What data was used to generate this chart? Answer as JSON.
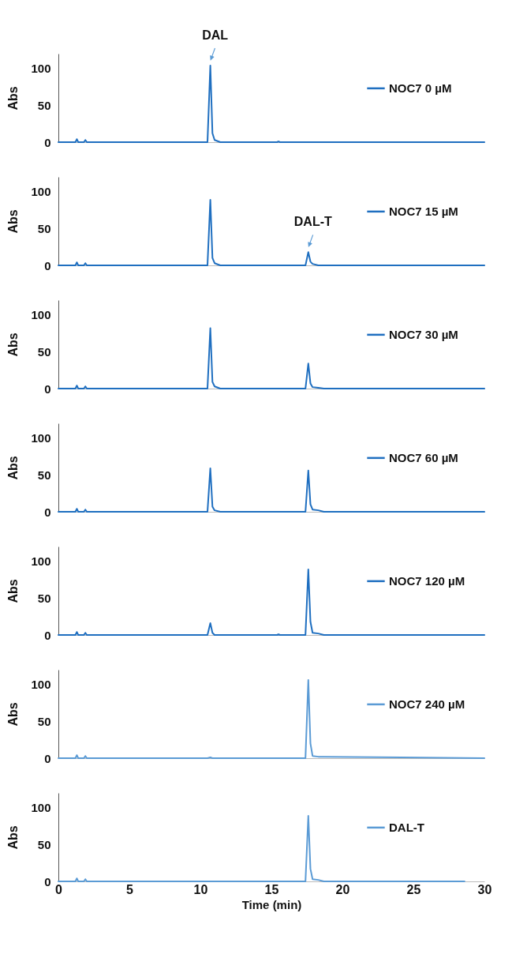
{
  "chart_data": [
    {
      "type": "line",
      "ylabel": "Abs",
      "xlim": [
        0,
        30
      ],
      "xticks": [
        0,
        5,
        10,
        15,
        20,
        25,
        30
      ],
      "ylim": [
        0,
        120
      ],
      "yticks": [
        0,
        50,
        100
      ],
      "tick_labels": "y",
      "legend": "right",
      "annotations": [
        {
          "text": "DAL",
          "x": 10.7,
          "y": 104
        }
      ],
      "x": [
        0,
        1.2,
        1.3,
        1.4,
        1.8,
        1.9,
        2.0,
        4,
        10.5,
        10.7,
        10.85,
        11.0,
        11.4,
        15.4,
        15.5,
        15.6,
        17.4,
        17.6,
        17.75,
        17.9,
        18.3,
        18.7,
        30
      ],
      "series": [
        {
          "name": "NOC7 0 µM",
          "color": "#1f6fc0",
          "values": [
            0,
            0,
            4,
            0,
            0,
            3,
            0,
            0,
            0,
            104,
            12,
            3,
            0,
            0,
            1,
            0,
            0,
            0,
            0,
            0,
            0,
            0,
            0
          ]
        }
      ]
    },
    {
      "type": "line",
      "ylabel": "Abs",
      "xlim": [
        0,
        30
      ],
      "xticks": [
        0,
        5,
        10,
        15,
        20,
        25,
        30
      ],
      "ylim": [
        0,
        120
      ],
      "yticks": [
        0,
        50,
        100
      ],
      "tick_labels": "y",
      "legend": "right",
      "annotations": [
        {
          "text": "DAL-T",
          "x": 17.6,
          "y": 18
        }
      ],
      "x": [
        0,
        1.2,
        1.3,
        1.4,
        1.8,
        1.9,
        2.0,
        4,
        10.5,
        10.7,
        10.85,
        11.0,
        11.4,
        15.4,
        15.5,
        15.6,
        17.4,
        17.6,
        17.75,
        17.9,
        18.3,
        18.7,
        30
      ],
      "series": [
        {
          "name": "NOC7 15 µM",
          "color": "#1f6fc0",
          "values": [
            0,
            0,
            4,
            0,
            0,
            3,
            0,
            0,
            0,
            89,
            10,
            3,
            0,
            0,
            0,
            0,
            0,
            18,
            5,
            2,
            0,
            0,
            0
          ]
        }
      ]
    },
    {
      "type": "line",
      "ylabel": "Abs",
      "xlim": [
        0,
        30
      ],
      "xticks": [
        0,
        5,
        10,
        15,
        20,
        25,
        30
      ],
      "ylim": [
        0,
        120
      ],
      "yticks": [
        0,
        50,
        100
      ],
      "tick_labels": "y",
      "legend": "right",
      "x": [
        0,
        1.2,
        1.3,
        1.4,
        1.8,
        1.9,
        2.0,
        4,
        10.5,
        10.7,
        10.85,
        11.0,
        11.4,
        15.4,
        15.5,
        15.6,
        17.4,
        17.6,
        17.75,
        17.9,
        18.3,
        18.7,
        30
      ],
      "series": [
        {
          "name": "NOC7 30 µM",
          "color": "#1f6fc0",
          "values": [
            0,
            0,
            4,
            0,
            0,
            3,
            0,
            0,
            0,
            82,
            9,
            3,
            0,
            0,
            0,
            0,
            0,
            34,
            7,
            2,
            1,
            0,
            0
          ]
        }
      ]
    },
    {
      "type": "line",
      "ylabel": "Abs",
      "xlim": [
        0,
        30
      ],
      "xticks": [
        0,
        5,
        10,
        15,
        20,
        25,
        30
      ],
      "ylim": [
        0,
        120
      ],
      "yticks": [
        0,
        50,
        100
      ],
      "tick_labels": "y",
      "legend": "right",
      "x": [
        0,
        1.2,
        1.3,
        1.4,
        1.8,
        1.9,
        2.0,
        4,
        10.5,
        10.7,
        10.85,
        11.0,
        11.4,
        15.4,
        15.5,
        15.6,
        17.4,
        17.6,
        17.75,
        17.9,
        18.3,
        18.7,
        30
      ],
      "series": [
        {
          "name": "NOC7 60 µM",
          "color": "#1f6fc0",
          "values": [
            0,
            0,
            4,
            0,
            0,
            3,
            0,
            0,
            0,
            59,
            7,
            2,
            0,
            0,
            0,
            0,
            0,
            56,
            10,
            3,
            2,
            0,
            0
          ]
        }
      ]
    },
    {
      "type": "line",
      "ylabel": "Abs",
      "xlim": [
        0,
        30
      ],
      "xticks": [
        0,
        5,
        10,
        15,
        20,
        25,
        30
      ],
      "ylim": [
        0,
        120
      ],
      "yticks": [
        0,
        50,
        100
      ],
      "tick_labels": "y",
      "legend": "right",
      "x": [
        0,
        1.2,
        1.3,
        1.4,
        1.8,
        1.9,
        2.0,
        4,
        10.5,
        10.7,
        10.85,
        11.0,
        11.4,
        15.4,
        15.5,
        15.6,
        17.4,
        17.6,
        17.75,
        17.9,
        18.3,
        18.7,
        30
      ],
      "series": [
        {
          "name": "NOC7 120 µM",
          "color": "#1f6fc0",
          "values": [
            0,
            0,
            4,
            0,
            0,
            3,
            0,
            0,
            0,
            16,
            3,
            0,
            0,
            0,
            1,
            0,
            0,
            89,
            18,
            3,
            2,
            0,
            0
          ]
        }
      ]
    },
    {
      "type": "line",
      "ylabel": "Abs",
      "xlim": [
        0,
        30
      ],
      "xticks": [
        0,
        5,
        10,
        15,
        20,
        25,
        30
      ],
      "ylim": [
        0,
        120
      ],
      "yticks": [
        0,
        50,
        100
      ],
      "tick_labels": "y",
      "legend": "right",
      "x": [
        0,
        1.2,
        1.3,
        1.4,
        1.8,
        1.9,
        2.0,
        4,
        10.5,
        10.7,
        10.85,
        11.0,
        11.4,
        15.4,
        15.5,
        15.6,
        17.4,
        17.6,
        17.75,
        17.9,
        18.3,
        18.7,
        30
      ],
      "series": [
        {
          "name": "NOC7 240 µM",
          "color": "#5b9bd5",
          "values": [
            0,
            0,
            4,
            0,
            0,
            3,
            0,
            0,
            0,
            1,
            0,
            0,
            0,
            0,
            0,
            0,
            0,
            106,
            20,
            3,
            2,
            2,
            0
          ]
        }
      ]
    },
    {
      "type": "line",
      "ylabel": "Abs",
      "xlabel": "Time (min)",
      "xlim": [
        0,
        30
      ],
      "xticks": [
        0,
        5,
        10,
        15,
        20,
        25,
        30
      ],
      "ylim": [
        0,
        120
      ],
      "yticks": [
        0,
        50,
        100
      ],
      "legend": "right",
      "x": [
        0,
        1.2,
        1.3,
        1.4,
        1.8,
        1.9,
        2.0,
        4,
        10.5,
        10.7,
        10.85,
        11.0,
        11.4,
        15.4,
        15.5,
        15.6,
        17.4,
        17.6,
        17.75,
        17.9,
        18.3,
        18.7,
        28.6
      ],
      "series": [
        {
          "name": "DAL-T",
          "color": "#5b9bd5",
          "values": [
            0,
            0,
            4,
            0,
            0,
            3,
            0,
            0,
            0,
            0,
            0,
            0,
            0,
            0,
            0,
            0,
            0,
            89,
            17,
            3,
            2,
            0,
            0
          ]
        }
      ]
    }
  ]
}
